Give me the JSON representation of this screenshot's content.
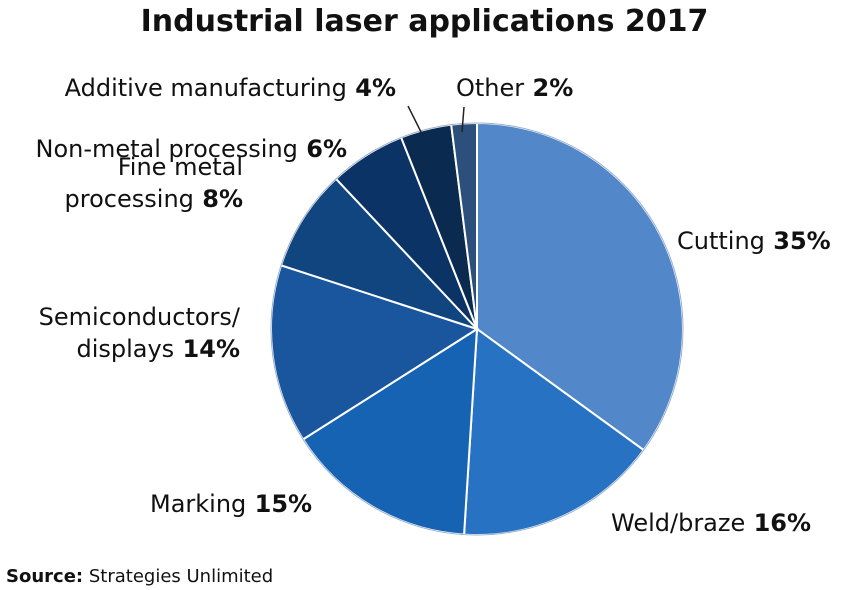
{
  "chart_data": {
    "type": "pie",
    "title": "Industrial laser applications 2017",
    "slices": [
      {
        "label": "Cutting",
        "value": 35,
        "pct_text": "35%",
        "color": "#5287c9"
      },
      {
        "label": "Weld/braze",
        "value": 16,
        "pct_text": "16%",
        "color": "#2872c3"
      },
      {
        "label": "Marking",
        "value": 15,
        "pct_text": "15%",
        "color": "#1663b4"
      },
      {
        "label": "Semiconductors/ displays",
        "lines": [
          "Semiconductors/",
          "displays"
        ],
        "value": 14,
        "pct_text": "14%",
        "color": "#1a569e"
      },
      {
        "label": "Fine metal processing",
        "lines": [
          "Fine metal",
          "processing"
        ],
        "value": 8,
        "pct_text": "8%",
        "color": "#10457f"
      },
      {
        "label": "Non-metal processing",
        "value": 6,
        "pct_text": "6%",
        "color": "#0b3366"
      },
      {
        "label": "Additive manufacturing",
        "value": 4,
        "pct_text": "4%",
        "color": "#0a2a50"
      },
      {
        "label": "Other",
        "value": 2,
        "pct_text": "2%",
        "color": "#2d4f7c"
      }
    ]
  },
  "source": {
    "label": "Source:",
    "text": "Strategies Unlimited"
  }
}
